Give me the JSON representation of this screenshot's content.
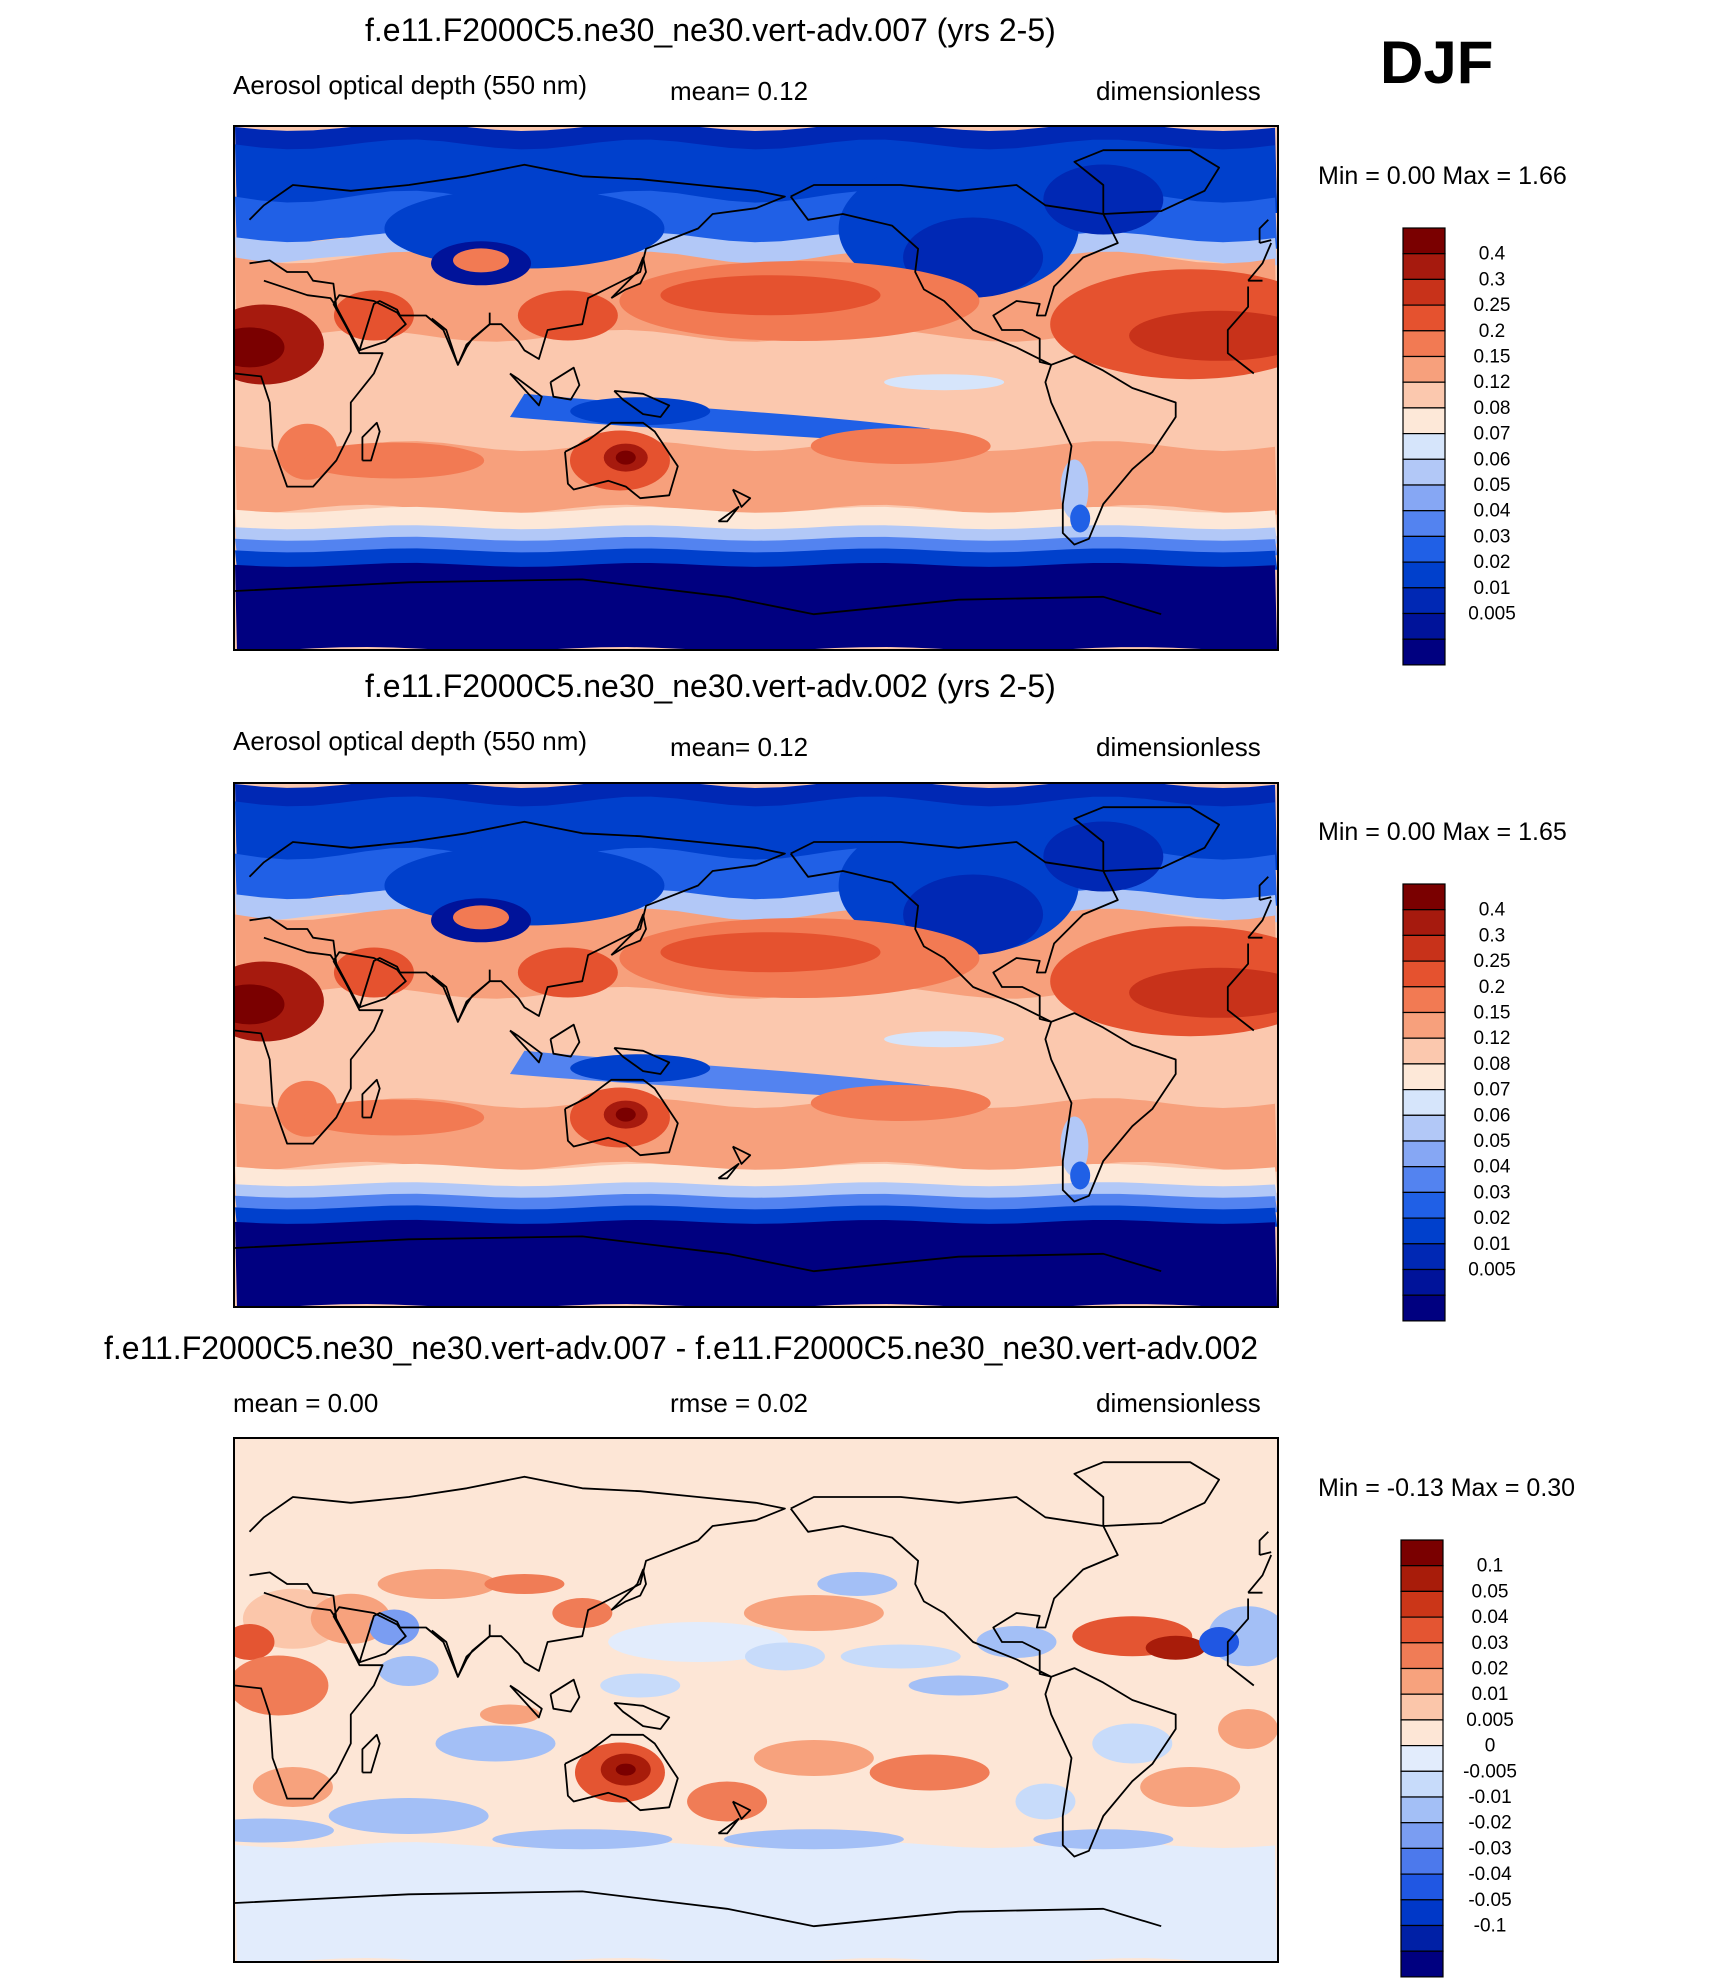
{
  "season": "DJF",
  "panels": [
    {
      "id": "p1",
      "title": "f.e11.F2000C5.ne30_ne30.vert-adv.007 (yrs 2-5)",
      "left_label": "Aerosol optical depth (550 nm)",
      "center_label": "mean=   0.12",
      "right_label": "dimensionless",
      "minmax": "Min =    0.00 Max =    1.66"
    },
    {
      "id": "p2",
      "title": "f.e11.F2000C5.ne30_ne30.vert-adv.002 (yrs 2-5)",
      "left_label": "Aerosol optical depth (550 nm)",
      "center_label": "mean=   0.12",
      "right_label": "dimensionless",
      "minmax": "Min =    0.00 Max =    1.65"
    },
    {
      "id": "p3",
      "title": "f.e11.F2000C5.ne30_ne30.vert-adv.007 - f.e11.F2000C5.ne30_ne30.vert-adv.002",
      "left_label": "mean =    0.00",
      "center_label": "rmse =    0.02",
      "right_label": "dimensionless",
      "minmax": "Min =  -0.13 Max =    0.30"
    }
  ],
  "colors": {
    "aod_levels": [
      "#000080",
      "#00139a",
      "#0028b4",
      "#0040cc",
      "#2060e6",
      "#5383f0",
      "#86a7f4",
      "#b2c8f7",
      "#d6e5fb",
      "#fde8d8",
      "#fbc8ae",
      "#f7a07c",
      "#f27a53",
      "#e5522f",
      "#c8321a",
      "#a61a0e",
      "#7a0000"
    ],
    "diff_levels": [
      "#000080",
      "#0020a6",
      "#0038c8",
      "#2057e3",
      "#4c79ec",
      "#7a9df2",
      "#a3bff6",
      "#c7dbfa",
      "#e2ecfc",
      "#fde6d6",
      "#fbc6aa",
      "#f7a27d",
      "#f07c56",
      "#e45532",
      "#cb3618",
      "#a81c0a",
      "#7a0000"
    ]
  },
  "chart_data": [
    {
      "type": "heatmap",
      "title": "f.e11.F2000C5.ne30_ne30.vert-adv.007 (yrs 2-5)",
      "variable": "Aerosol optical depth (550 nm)",
      "units": "dimensionless",
      "mean": 0.12,
      "min": 0.0,
      "max": 1.66,
      "levels": [
        "0.4",
        "0.3",
        "0.25",
        "0.2",
        "0.15",
        "0.12",
        "0.08",
        "0.07",
        "0.06",
        "0.05",
        "0.04",
        "0.03",
        "0.02",
        "0.01",
        "0.005"
      ]
    },
    {
      "type": "heatmap",
      "title": "f.e11.F2000C5.ne30_ne30.vert-adv.002 (yrs 2-5)",
      "variable": "Aerosol optical depth (550 nm)",
      "units": "dimensionless",
      "mean": 0.12,
      "min": 0.0,
      "max": 1.65,
      "levels": [
        "0.4",
        "0.3",
        "0.25",
        "0.2",
        "0.15",
        "0.12",
        "0.08",
        "0.07",
        "0.06",
        "0.05",
        "0.04",
        "0.03",
        "0.02",
        "0.01",
        "0.005"
      ]
    },
    {
      "type": "heatmap",
      "title": "f.e11.F2000C5.ne30_ne30.vert-adv.007 - f.e11.F2000C5.ne30_ne30.vert-adv.002",
      "units": "dimensionless",
      "mean": 0.0,
      "rmse": 0.02,
      "min": -0.13,
      "max": 0.3,
      "levels": [
        "0.1",
        "0.05",
        "0.04",
        "0.03",
        "0.02",
        "0.01",
        "0.005",
        "0",
        "-0.005",
        "-0.01",
        "-0.02",
        "-0.03",
        "-0.04",
        "-0.05",
        "-0.1"
      ]
    }
  ]
}
